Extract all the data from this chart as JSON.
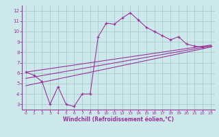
{
  "xlabel": "Windchill (Refroidissement éolien,°C)",
  "bg_color": "#cce8ea",
  "line_color": "#993399",
  "grid_color": "#aacccc",
  "xlim": [
    -0.5,
    23.5
  ],
  "ylim": [
    2.5,
    12.5
  ],
  "xticks": [
    0,
    1,
    2,
    3,
    4,
    5,
    6,
    7,
    8,
    9,
    10,
    11,
    12,
    13,
    14,
    15,
    16,
    17,
    18,
    19,
    20,
    21,
    22,
    23
  ],
  "yticks": [
    3,
    4,
    5,
    6,
    7,
    8,
    9,
    10,
    11,
    12
  ],
  "main_x": [
    0,
    1,
    2,
    3,
    4,
    5,
    6,
    7,
    8,
    9,
    10,
    11,
    12,
    13,
    14,
    15,
    16,
    17,
    18,
    19,
    20,
    21,
    22,
    23
  ],
  "main_y": [
    6.1,
    5.8,
    5.2,
    3.0,
    4.7,
    3.0,
    2.8,
    4.0,
    4.0,
    9.5,
    10.8,
    10.7,
    11.3,
    11.8,
    11.1,
    10.4,
    10.0,
    9.6,
    9.2,
    9.5,
    8.8,
    8.6,
    8.5,
    8.6
  ],
  "trend1_x": [
    0,
    23
  ],
  "trend1_y": [
    5.5,
    8.6
  ],
  "trend2_x": [
    0,
    23
  ],
  "trend2_y": [
    6.1,
    8.7
  ],
  "trend3_x": [
    0,
    23
  ],
  "trend3_y": [
    4.8,
    8.5
  ]
}
